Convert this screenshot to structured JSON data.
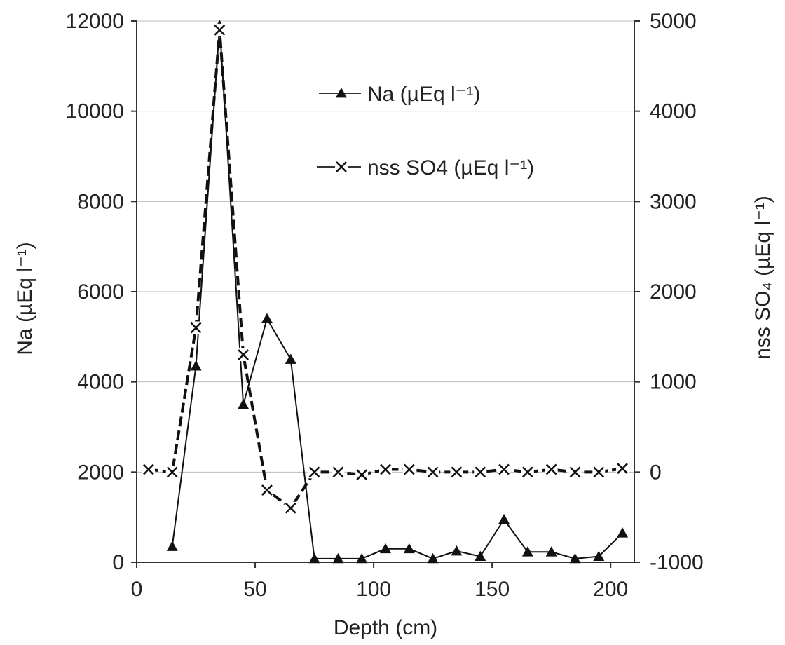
{
  "chart_data": {
    "type": "line",
    "xlabel": "Depth  (cm)",
    "ylabel_left": "Na (µEq l⁻¹)",
    "ylabel_right": "nss SO₄  (µEq l⁻¹)",
    "xlim": [
      0,
      210
    ],
    "ylim_left": [
      0,
      12000
    ],
    "ylim_right": [
      -1000,
      5000
    ],
    "x_ticks": [
      0,
      50,
      100,
      150,
      200
    ],
    "y_ticks_left": [
      0,
      2000,
      4000,
      6000,
      8000,
      10000,
      12000
    ],
    "y_ticks_right": [
      -1000,
      0,
      1000,
      2000,
      3000,
      4000,
      5000
    ],
    "grid": "horizontal lines at tick values",
    "legend_position": "top-center",
    "series": [
      {
        "name": "Na  (µEq l⁻¹)",
        "axis": "left",
        "marker": "triangle",
        "color": "#111111",
        "x": [
          15,
          25,
          35,
          45,
          55,
          65,
          75,
          85,
          95,
          105,
          115,
          125,
          135,
          145,
          155,
          165,
          175,
          185,
          195,
          205
        ],
        "values": [
          350,
          4350,
          11900,
          3500,
          5400,
          4500,
          80,
          80,
          80,
          300,
          300,
          80,
          250,
          130,
          950,
          230,
          230,
          80,
          130,
          650
        ]
      },
      {
        "name": "nss SO4  (µEq l⁻¹)",
        "axis": "right",
        "marker": "x",
        "color": "#111111",
        "x": [
          5,
          15,
          25,
          35,
          45,
          55,
          65,
          75,
          85,
          95,
          105,
          115,
          125,
          135,
          145,
          155,
          165,
          175,
          185,
          195,
          205
        ],
        "values": [
          30,
          0,
          1600,
          4900,
          1300,
          -200,
          -400,
          0,
          0,
          -30,
          30,
          30,
          0,
          0,
          0,
          30,
          0,
          30,
          0,
          0,
          40
        ]
      }
    ]
  }
}
